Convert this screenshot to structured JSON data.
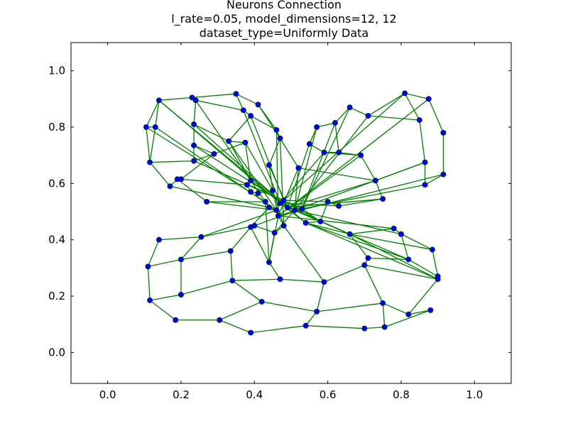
{
  "chart_data": {
    "type": "scatter",
    "title_lines": [
      "Neurons Connection",
      "l_rate=0.05, model_dimensions=12, 12",
      "dataset_type=Uniformly Data"
    ],
    "xlabel": "",
    "ylabel": "",
    "xlim": [
      -0.1,
      1.1
    ],
    "ylim": [
      -0.11,
      1.1
    ],
    "xticks": [
      "0.0",
      "0.2",
      "0.4",
      "0.6",
      "0.8",
      "1.0"
    ],
    "yticks": [
      "0.0",
      "0.2",
      "0.4",
      "0.6",
      "0.8",
      "1.0"
    ],
    "grid": false,
    "colors": {
      "line": "#008000",
      "marker_fill": "#0000ff",
      "marker_edge": "#003300"
    },
    "nodes": [
      [
        0.14,
        0.895
      ],
      [
        0.23,
        0.905
      ],
      [
        0.24,
        0.895
      ],
      [
        0.35,
        0.918
      ],
      [
        0.37,
        0.86
      ],
      [
        0.41,
        0.88
      ],
      [
        0.39,
        0.84
      ],
      [
        0.46,
        0.79
      ],
      [
        0.47,
        0.76
      ],
      [
        0.105,
        0.8
      ],
      [
        0.13,
        0.8
      ],
      [
        0.235,
        0.81
      ],
      [
        0.33,
        0.75
      ],
      [
        0.375,
        0.745
      ],
      [
        0.235,
        0.735
      ],
      [
        0.29,
        0.705
      ],
      [
        0.115,
        0.675
      ],
      [
        0.235,
        0.68
      ],
      [
        0.44,
        0.665
      ],
      [
        0.39,
        0.61
      ],
      [
        0.19,
        0.615
      ],
      [
        0.2,
        0.615
      ],
      [
        0.17,
        0.59
      ],
      [
        0.38,
        0.595
      ],
      [
        0.39,
        0.57
      ],
      [
        0.41,
        0.565
      ],
      [
        0.45,
        0.575
      ],
      [
        0.27,
        0.535
      ],
      [
        0.43,
        0.535
      ],
      [
        0.44,
        0.515
      ],
      [
        0.46,
        0.505
      ],
      [
        0.47,
        0.53
      ],
      [
        0.48,
        0.54
      ],
      [
        0.49,
        0.515
      ],
      [
        0.51,
        0.505
      ],
      [
        0.53,
        0.51
      ],
      [
        0.465,
        0.485
      ],
      [
        0.48,
        0.45
      ],
      [
        0.455,
        0.425
      ],
      [
        0.4,
        0.45
      ],
      [
        0.54,
        0.46
      ],
      [
        0.58,
        0.465
      ],
      [
        0.6,
        0.535
      ],
      [
        0.63,
        0.52
      ],
      [
        0.52,
        0.655
      ],
      [
        0.55,
        0.74
      ],
      [
        0.57,
        0.8
      ],
      [
        0.62,
        0.815
      ],
      [
        0.59,
        0.71
      ],
      [
        0.63,
        0.71
      ],
      [
        0.66,
        0.87
      ],
      [
        0.71,
        0.84
      ],
      [
        0.69,
        0.7
      ],
      [
        0.73,
        0.61
      ],
      [
        0.75,
        0.545
      ],
      [
        0.81,
        0.92
      ],
      [
        0.85,
        0.825
      ],
      [
        0.875,
        0.9
      ],
      [
        0.915,
        0.78
      ],
      [
        0.865,
        0.675
      ],
      [
        0.865,
        0.595
      ],
      [
        0.915,
        0.632
      ],
      [
        0.14,
        0.4
      ],
      [
        0.255,
        0.41
      ],
      [
        0.39,
        0.445
      ],
      [
        0.66,
        0.42
      ],
      [
        0.78,
        0.44
      ],
      [
        0.8,
        0.42
      ],
      [
        0.885,
        0.365
      ],
      [
        0.11,
        0.305
      ],
      [
        0.2,
        0.33
      ],
      [
        0.335,
        0.36
      ],
      [
        0.44,
        0.32
      ],
      [
        0.7,
        0.31
      ],
      [
        0.71,
        0.335
      ],
      [
        0.82,
        0.33
      ],
      [
        0.9,
        0.26
      ],
      [
        0.9,
        0.27
      ],
      [
        0.2,
        0.205
      ],
      [
        0.34,
        0.255
      ],
      [
        0.47,
        0.26
      ],
      [
        0.59,
        0.25
      ],
      [
        0.115,
        0.185
      ],
      [
        0.42,
        0.18
      ],
      [
        0.75,
        0.175
      ],
      [
        0.57,
        0.145
      ],
      [
        0.82,
        0.135
      ],
      [
        0.88,
        0.15
      ],
      [
        0.185,
        0.115
      ],
      [
        0.305,
        0.115
      ],
      [
        0.54,
        0.095
      ],
      [
        0.7,
        0.085
      ],
      [
        0.755,
        0.09
      ],
      [
        0.39,
        0.07
      ]
    ],
    "edges": [
      [
        0,
        1
      ],
      [
        1,
        3
      ],
      [
        3,
        5
      ],
      [
        5,
        7
      ],
      [
        0,
        9
      ],
      [
        9,
        10
      ],
      [
        10,
        0
      ],
      [
        1,
        2
      ],
      [
        2,
        11
      ],
      [
        11,
        14
      ],
      [
        14,
        17
      ],
      [
        17,
        16
      ],
      [
        16,
        10
      ],
      [
        9,
        16
      ],
      [
        16,
        22
      ],
      [
        22,
        20
      ],
      [
        20,
        21
      ],
      [
        2,
        4
      ],
      [
        4,
        3
      ],
      [
        4,
        6
      ],
      [
        6,
        12
      ],
      [
        12,
        13
      ],
      [
        13,
        15
      ],
      [
        15,
        14
      ],
      [
        6,
        7
      ],
      [
        7,
        8
      ],
      [
        8,
        44
      ],
      [
        8,
        18
      ],
      [
        5,
        8
      ],
      [
        13,
        19
      ],
      [
        19,
        23
      ],
      [
        23,
        24
      ],
      [
        24,
        25
      ],
      [
        25,
        26
      ],
      [
        26,
        18
      ],
      [
        17,
        15
      ],
      [
        15,
        21
      ],
      [
        21,
        23
      ],
      [
        11,
        12
      ],
      [
        12,
        19
      ],
      [
        20,
        27
      ],
      [
        27,
        28
      ],
      [
        28,
        29
      ],
      [
        29,
        30
      ],
      [
        30,
        31
      ],
      [
        31,
        32
      ],
      [
        32,
        33
      ],
      [
        33,
        34
      ],
      [
        34,
        35
      ],
      [
        35,
        36
      ],
      [
        36,
        37
      ],
      [
        37,
        38
      ],
      [
        38,
        39
      ],
      [
        39,
        63
      ],
      [
        63,
        62
      ],
      [
        62,
        69
      ],
      [
        69,
        82
      ],
      [
        82,
        88
      ],
      [
        88,
        89
      ],
      [
        89,
        93
      ],
      [
        93,
        90
      ],
      [
        90,
        91
      ],
      [
        91,
        92
      ],
      [
        92,
        87
      ],
      [
        87,
        86
      ],
      [
        86,
        76
      ],
      [
        76,
        77
      ],
      [
        77,
        68
      ],
      [
        68,
        67
      ],
      [
        67,
        66
      ],
      [
        66,
        65
      ],
      [
        65,
        40
      ],
      [
        40,
        41
      ],
      [
        41,
        42
      ],
      [
        42,
        43
      ],
      [
        43,
        54
      ],
      [
        54,
        53
      ],
      [
        53,
        52
      ],
      [
        52,
        48
      ],
      [
        48,
        45
      ],
      [
        45,
        46
      ],
      [
        46,
        47
      ],
      [
        47,
        50
      ],
      [
        50,
        51
      ],
      [
        51,
        55
      ],
      [
        55,
        57
      ],
      [
        57,
        58
      ],
      [
        58,
        61
      ],
      [
        61,
        60
      ],
      [
        60,
        59
      ],
      [
        59,
        56
      ],
      [
        56,
        51
      ],
      [
        56,
        55
      ],
      [
        52,
        49
      ],
      [
        49,
        48
      ],
      [
        49,
        47
      ],
      [
        59,
        53
      ],
      [
        53,
        44
      ],
      [
        44,
        34
      ],
      [
        69,
        70
      ],
      [
        70,
        63
      ],
      [
        70,
        78
      ],
      [
        78,
        82
      ],
      [
        78,
        79
      ],
      [
        79,
        71
      ],
      [
        71,
        64
      ],
      [
        64,
        72
      ],
      [
        72,
        80
      ],
      [
        80,
        79
      ],
      [
        80,
        81
      ],
      [
        81,
        85
      ],
      [
        85,
        83
      ],
      [
        83,
        89
      ],
      [
        83,
        79
      ],
      [
        71,
        70
      ],
      [
        72,
        36
      ],
      [
        81,
        73
      ],
      [
        73,
        74
      ],
      [
        74,
        75
      ],
      [
        75,
        77
      ],
      [
        75,
        67
      ],
      [
        73,
        84
      ],
      [
        84,
        85
      ],
      [
        84,
        92
      ],
      [
        84,
        86
      ],
      [
        74,
        65
      ],
      [
        73,
        76
      ],
      [
        85,
        90
      ],
      [
        65,
        68
      ],
      [
        39,
        64
      ],
      [
        37,
        81
      ],
      [
        38,
        72
      ],
      [
        40,
        75
      ],
      [
        65,
        76
      ],
      [
        26,
        36
      ],
      [
        26,
        37
      ],
      [
        7,
        36
      ],
      [
        8,
        37
      ],
      [
        2,
        29
      ],
      [
        0,
        31
      ],
      [
        9,
        28
      ],
      [
        10,
        30
      ],
      [
        11,
        33
      ],
      [
        14,
        34
      ],
      [
        17,
        32
      ],
      [
        22,
        29
      ],
      [
        27,
        30
      ],
      [
        18,
        33
      ],
      [
        44,
        36
      ],
      [
        45,
        33
      ],
      [
        46,
        34
      ],
      [
        47,
        35
      ],
      [
        48,
        31
      ],
      [
        50,
        35
      ],
      [
        52,
        36
      ],
      [
        54,
        33
      ],
      [
        42,
        32
      ],
      [
        43,
        31
      ],
      [
        60,
        35
      ],
      [
        59,
        34
      ],
      [
        61,
        36
      ],
      [
        53,
        33
      ],
      [
        40,
        31
      ],
      [
        41,
        35
      ],
      [
        76,
        40
      ],
      [
        66,
        36
      ],
      [
        67,
        34
      ],
      [
        75,
        33
      ],
      [
        57,
        36
      ],
      [
        55,
        32
      ],
      [
        51,
        34
      ],
      [
        35,
        39
      ],
      [
        34,
        38
      ],
      [
        33,
        40
      ],
      [
        32,
        41
      ],
      [
        31,
        65
      ],
      [
        30,
        63
      ],
      [
        29,
        64
      ],
      [
        28,
        72
      ],
      [
        13,
        26
      ],
      [
        6,
        32
      ],
      [
        4,
        31
      ],
      [
        19,
        33
      ],
      [
        23,
        35
      ],
      [
        12,
        30
      ],
      [
        0,
        33
      ]
    ]
  }
}
